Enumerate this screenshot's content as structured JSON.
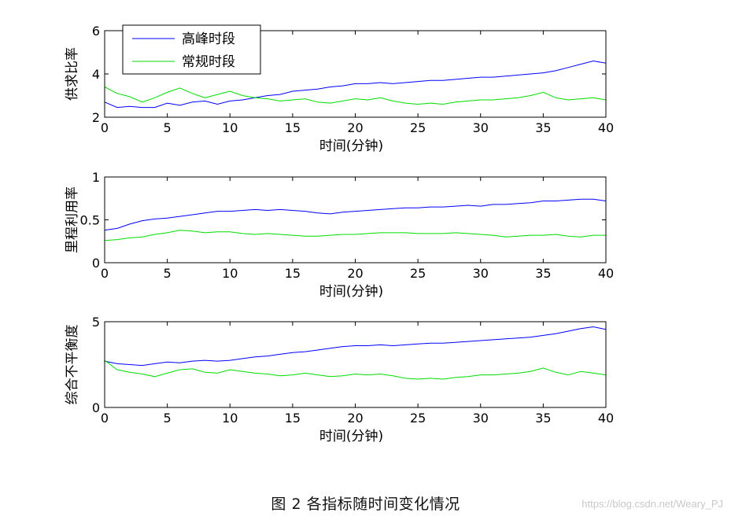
{
  "chart_data": [
    {
      "type": "line",
      "ylabel": "供求比率",
      "xlabel": "时间(分钟)",
      "xlim": [
        0,
        40
      ],
      "ylim": [
        2,
        6
      ],
      "xticks": [
        0,
        5,
        10,
        15,
        20,
        25,
        30,
        35,
        40
      ],
      "yticks": [
        2,
        4,
        6
      ],
      "x": [
        0,
        1,
        2,
        3,
        4,
        5,
        6,
        7,
        8,
        9,
        10,
        11,
        12,
        13,
        14,
        15,
        16,
        17,
        18,
        19,
        20,
        21,
        22,
        23,
        24,
        25,
        26,
        27,
        28,
        29,
        30,
        31,
        32,
        33,
        34,
        35,
        36,
        37,
        38,
        39,
        40
      ],
      "legend": {
        "entries": [
          "高峰时段",
          "常规时段"
        ],
        "location": "top-left"
      },
      "series": [
        {
          "name": "高峰时段",
          "color": "#0000ff",
          "values": [
            2.7,
            2.45,
            2.5,
            2.45,
            2.45,
            2.65,
            2.55,
            2.7,
            2.75,
            2.6,
            2.75,
            2.8,
            2.9,
            3.0,
            3.05,
            3.2,
            3.25,
            3.3,
            3.4,
            3.45,
            3.55,
            3.55,
            3.6,
            3.55,
            3.6,
            3.65,
            3.7,
            3.7,
            3.75,
            3.8,
            3.85,
            3.85,
            3.9,
            3.95,
            4.0,
            4.05,
            4.15,
            4.3,
            4.45,
            4.6,
            4.5
          ]
        },
        {
          "name": "常规时段",
          "color": "#00dd00",
          "values": [
            3.4,
            3.1,
            2.95,
            2.7,
            2.9,
            3.15,
            3.35,
            3.1,
            2.9,
            3.05,
            3.2,
            3.0,
            2.9,
            2.85,
            2.75,
            2.8,
            2.85,
            2.7,
            2.65,
            2.75,
            2.85,
            2.8,
            2.9,
            2.75,
            2.65,
            2.6,
            2.65,
            2.6,
            2.7,
            2.75,
            2.8,
            2.8,
            2.85,
            2.9,
            3.0,
            3.15,
            2.9,
            2.8,
            2.85,
            2.9,
            2.8
          ]
        }
      ]
    },
    {
      "type": "line",
      "ylabel": "里程利用率",
      "xlabel": "时间(分钟)",
      "xlim": [
        0,
        40
      ],
      "ylim": [
        0,
        1
      ],
      "xticks": [
        0,
        5,
        10,
        15,
        20,
        25,
        30,
        35,
        40
      ],
      "yticks": [
        0,
        0.5,
        1
      ],
      "x": [
        0,
        1,
        2,
        3,
        4,
        5,
        6,
        7,
        8,
        9,
        10,
        11,
        12,
        13,
        14,
        15,
        16,
        17,
        18,
        19,
        20,
        21,
        22,
        23,
        24,
        25,
        26,
        27,
        28,
        29,
        30,
        31,
        32,
        33,
        34,
        35,
        36,
        37,
        38,
        39,
        40
      ],
      "series": [
        {
          "name": "高峰时段",
          "color": "#0000ff",
          "values": [
            0.38,
            0.4,
            0.45,
            0.49,
            0.51,
            0.52,
            0.54,
            0.56,
            0.58,
            0.6,
            0.6,
            0.61,
            0.62,
            0.61,
            0.62,
            0.61,
            0.6,
            0.58,
            0.57,
            0.59,
            0.6,
            0.61,
            0.62,
            0.63,
            0.64,
            0.64,
            0.65,
            0.65,
            0.66,
            0.67,
            0.66,
            0.68,
            0.68,
            0.69,
            0.7,
            0.72,
            0.72,
            0.73,
            0.74,
            0.74,
            0.72
          ]
        },
        {
          "name": "常规时段",
          "color": "#00dd00",
          "values": [
            0.26,
            0.27,
            0.29,
            0.3,
            0.33,
            0.35,
            0.38,
            0.37,
            0.35,
            0.36,
            0.36,
            0.34,
            0.33,
            0.34,
            0.33,
            0.32,
            0.31,
            0.31,
            0.32,
            0.33,
            0.33,
            0.34,
            0.35,
            0.35,
            0.35,
            0.34,
            0.34,
            0.34,
            0.35,
            0.34,
            0.33,
            0.32,
            0.3,
            0.31,
            0.32,
            0.32,
            0.33,
            0.31,
            0.3,
            0.32,
            0.32
          ]
        }
      ]
    },
    {
      "type": "line",
      "ylabel": "综合不平衡度",
      "xlabel": "时间(分钟)",
      "xlim": [
        0,
        40
      ],
      "ylim": [
        0,
        5
      ],
      "xticks": [
        0,
        5,
        10,
        15,
        20,
        25,
        30,
        35,
        40
      ],
      "yticks": [
        0,
        5
      ],
      "x": [
        0,
        1,
        2,
        3,
        4,
        5,
        6,
        7,
        8,
        9,
        10,
        11,
        12,
        13,
        14,
        15,
        16,
        17,
        18,
        19,
        20,
        21,
        22,
        23,
        24,
        25,
        26,
        27,
        28,
        29,
        30,
        31,
        32,
        33,
        34,
        35,
        36,
        37,
        38,
        39,
        40
      ],
      "series": [
        {
          "name": "高峰时段",
          "color": "#0000ff",
          "values": [
            2.7,
            2.55,
            2.5,
            2.45,
            2.55,
            2.65,
            2.6,
            2.7,
            2.75,
            2.7,
            2.75,
            2.85,
            2.95,
            3.0,
            3.1,
            3.2,
            3.25,
            3.35,
            3.45,
            3.55,
            3.6,
            3.6,
            3.65,
            3.6,
            3.65,
            3.7,
            3.75,
            3.75,
            3.8,
            3.85,
            3.9,
            3.95,
            4.0,
            4.05,
            4.1,
            4.2,
            4.3,
            4.45,
            4.6,
            4.7,
            4.55
          ]
        },
        {
          "name": "常规时段",
          "color": "#00dd00",
          "values": [
            2.75,
            2.2,
            2.05,
            1.95,
            1.8,
            2.0,
            2.2,
            2.25,
            2.05,
            2.0,
            2.2,
            2.1,
            2.0,
            1.95,
            1.85,
            1.9,
            2.0,
            1.9,
            1.8,
            1.85,
            1.95,
            1.9,
            1.95,
            1.85,
            1.7,
            1.65,
            1.7,
            1.65,
            1.75,
            1.8,
            1.9,
            1.9,
            1.95,
            2.0,
            2.1,
            2.3,
            2.05,
            1.9,
            2.1,
            2.0,
            1.9
          ]
        }
      ]
    }
  ],
  "caption": "图 2  各指标随时间变化情况",
  "watermark": "https://blog.csdn.net/Weary_PJ"
}
